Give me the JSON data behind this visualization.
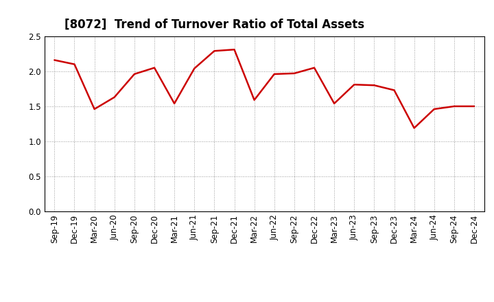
{
  "title": "[8072]  Trend of Turnover Ratio of Total Assets",
  "x_labels": [
    "Sep-19",
    "Dec-19",
    "Mar-20",
    "Jun-20",
    "Sep-20",
    "Dec-20",
    "Mar-21",
    "Jun-21",
    "Sep-21",
    "Dec-21",
    "Mar-22",
    "Jun-22",
    "Sep-22",
    "Dec-22",
    "Mar-23",
    "Jun-23",
    "Sep-23",
    "Dec-23",
    "Mar-24",
    "Jun-24",
    "Sep-24",
    "Dec-24"
  ],
  "y_values": [
    2.16,
    2.1,
    1.46,
    1.63,
    1.96,
    2.05,
    1.54,
    2.04,
    2.29,
    2.31,
    1.59,
    1.96,
    1.97,
    2.05,
    1.54,
    1.81,
    1.8,
    1.73,
    1.19,
    1.46,
    1.5,
    1.5
  ],
  "line_color": "#cc0000",
  "line_width": 1.8,
  "ylim": [
    0.0,
    2.5
  ],
  "yticks": [
    0.0,
    0.5,
    1.0,
    1.5,
    2.0,
    2.5
  ],
  "background_color": "#ffffff",
  "plot_bg_color": "#ffffff",
  "grid_color": "#999999",
  "title_fontsize": 12,
  "tick_fontsize": 8.5
}
